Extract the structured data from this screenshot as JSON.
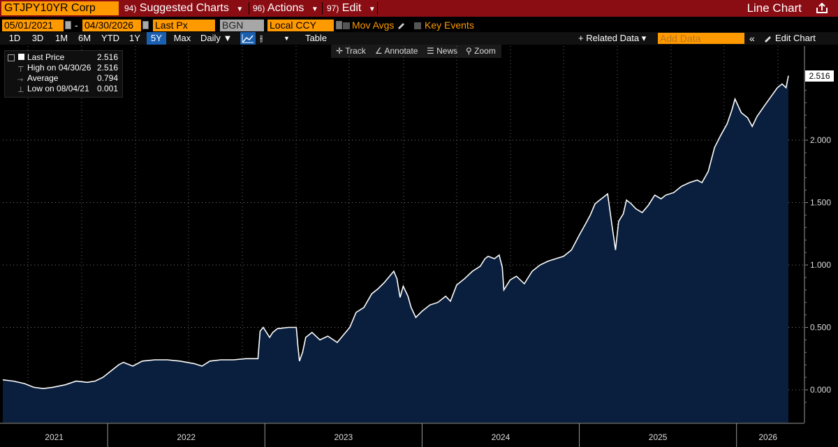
{
  "toolbar": {
    "ticker": "GTJPY10YR Corp",
    "menu": [
      {
        "num": "94)",
        "label": "Suggested Charts"
      },
      {
        "num": "96)",
        "label": "Actions"
      },
      {
        "num": "97)",
        "label": "Edit"
      }
    ],
    "chart_type": "Line Chart"
  },
  "params": {
    "start_date": "05/01/2021",
    "dash": "-",
    "end_date": "04/30/2026",
    "field": "Last Px",
    "source": "BGN",
    "currency": "Local CCY",
    "mov_avgs": "Mov Avgs",
    "key_events": "Key Events"
  },
  "periods": [
    "1D",
    "3D",
    "1M",
    "6M",
    "YTD",
    "1Y",
    "5Y",
    "Max"
  ],
  "active_period": "5Y",
  "frequency": "Daily ▼",
  "table_label": "Table",
  "related_data": "+ Related Data ▾",
  "add_data_placeholder": "Add Data",
  "edit_chart": "Edit Chart",
  "tools": [
    "Track",
    "Annotate",
    "News",
    "Zoom"
  ],
  "legend": [
    {
      "label": "Last Price",
      "value": "2.516"
    },
    {
      "label": "High on 04/30/26",
      "value": "2.516"
    },
    {
      "label": "Average",
      "value": "0.794"
    },
    {
      "label": "Low on 08/04/21",
      "value": "0.001"
    }
  ],
  "colors": {
    "accent": "#ff9900",
    "header_red": "#8b0d14",
    "area_fill": "#0a1f3d",
    "line": "#ffffff",
    "active_tab": "#1b5fb0"
  },
  "chart_data": {
    "type": "area",
    "title": "GTJPY10YR Corp",
    "series_name": "Last Price",
    "last_value_label": "2.516",
    "ylim": [
      -0.25,
      2.75
    ],
    "yticks": [
      0.0,
      0.5,
      1.0,
      1.5,
      2.0
    ],
    "ytick_labels": [
      "0.000",
      "0.500",
      "1.000",
      "1.500",
      "2.000"
    ],
    "xlim": [
      2021.333,
      2026.45
    ],
    "x_year_labels": [
      "2021",
      "2022",
      "2023",
      "2024",
      "2025",
      "2026"
    ],
    "x_year_label_positions": [
      2021.66,
      2022.5,
      2023.5,
      2024.5,
      2025.5,
      2026.2
    ],
    "x_year_boundaries": [
      2022.0,
      2023.0,
      2024.0,
      2025.0,
      2026.0
    ],
    "series": [
      {
        "name": "Last Price",
        "points": [
          [
            2021.333,
            0.08
          ],
          [
            2021.4,
            0.07
          ],
          [
            2021.47,
            0.05
          ],
          [
            2021.53,
            0.02
          ],
          [
            2021.59,
            0.01
          ],
          [
            2021.65,
            0.02
          ],
          [
            2021.73,
            0.04
          ],
          [
            2021.8,
            0.07
          ],
          [
            2021.87,
            0.06
          ],
          [
            2021.92,
            0.07
          ],
          [
            2021.97,
            0.1
          ],
          [
            2022.02,
            0.15
          ],
          [
            2022.07,
            0.2
          ],
          [
            2022.1,
            0.22
          ],
          [
            2022.16,
            0.19
          ],
          [
            2022.22,
            0.23
          ],
          [
            2022.3,
            0.24
          ],
          [
            2022.38,
            0.24
          ],
          [
            2022.46,
            0.23
          ],
          [
            2022.55,
            0.21
          ],
          [
            2022.6,
            0.19
          ],
          [
            2022.65,
            0.23
          ],
          [
            2022.72,
            0.24
          ],
          [
            2022.8,
            0.24
          ],
          [
            2022.88,
            0.25
          ],
          [
            2022.956,
            0.25
          ],
          [
            2022.97,
            0.47
          ],
          [
            2022.99,
            0.5
          ],
          [
            2023.03,
            0.42
          ],
          [
            2023.05,
            0.46
          ],
          [
            2023.08,
            0.49
          ],
          [
            2023.15,
            0.5
          ],
          [
            2023.2,
            0.5
          ],
          [
            2023.21,
            0.35
          ],
          [
            2023.22,
            0.23
          ],
          [
            2023.24,
            0.3
          ],
          [
            2023.26,
            0.42
          ],
          [
            2023.3,
            0.46
          ],
          [
            2023.35,
            0.4
          ],
          [
            2023.4,
            0.43
          ],
          [
            2023.46,
            0.38
          ],
          [
            2023.5,
            0.44
          ],
          [
            2023.54,
            0.5
          ],
          [
            2023.58,
            0.62
          ],
          [
            2023.63,
            0.66
          ],
          [
            2023.68,
            0.77
          ],
          [
            2023.72,
            0.81
          ],
          [
            2023.76,
            0.86
          ],
          [
            2023.8,
            0.92
          ],
          [
            2023.82,
            0.95
          ],
          [
            2023.84,
            0.89
          ],
          [
            2023.86,
            0.74
          ],
          [
            2023.88,
            0.83
          ],
          [
            2023.91,
            0.75
          ],
          [
            2023.93,
            0.66
          ],
          [
            2023.96,
            0.58
          ],
          [
            2024.0,
            0.63
          ],
          [
            2024.05,
            0.68
          ],
          [
            2024.1,
            0.7
          ],
          [
            2024.15,
            0.75
          ],
          [
            2024.18,
            0.71
          ],
          [
            2024.22,
            0.84
          ],
          [
            2024.27,
            0.89
          ],
          [
            2024.32,
            0.95
          ],
          [
            2024.37,
            0.99
          ],
          [
            2024.4,
            1.05
          ],
          [
            2024.42,
            1.07
          ],
          [
            2024.46,
            1.05
          ],
          [
            2024.49,
            1.08
          ],
          [
            2024.51,
            0.98
          ],
          [
            2024.52,
            0.8
          ],
          [
            2024.56,
            0.88
          ],
          [
            2024.6,
            0.91
          ],
          [
            2024.65,
            0.85
          ],
          [
            2024.7,
            0.95
          ],
          [
            2024.75,
            1.0
          ],
          [
            2024.8,
            1.03
          ],
          [
            2024.85,
            1.05
          ],
          [
            2024.9,
            1.07
          ],
          [
            2024.95,
            1.12
          ],
          [
            2025.0,
            1.24
          ],
          [
            2025.04,
            1.33
          ],
          [
            2025.07,
            1.4
          ],
          [
            2025.1,
            1.49
          ],
          [
            2025.13,
            1.52
          ],
          [
            2025.16,
            1.55
          ],
          [
            2025.18,
            1.57
          ],
          [
            2025.21,
            1.3
          ],
          [
            2025.23,
            1.12
          ],
          [
            2025.25,
            1.35
          ],
          [
            2025.28,
            1.41
          ],
          [
            2025.3,
            1.52
          ],
          [
            2025.33,
            1.49
          ],
          [
            2025.36,
            1.45
          ],
          [
            2025.4,
            1.42
          ],
          [
            2025.44,
            1.48
          ],
          [
            2025.48,
            1.56
          ],
          [
            2025.52,
            1.53
          ],
          [
            2025.55,
            1.56
          ],
          [
            2025.6,
            1.58
          ],
          [
            2025.65,
            1.63
          ],
          [
            2025.7,
            1.66
          ],
          [
            2025.75,
            1.68
          ],
          [
            2025.78,
            1.66
          ],
          [
            2025.82,
            1.75
          ],
          [
            2025.86,
            1.94
          ],
          [
            2025.9,
            2.04
          ],
          [
            2025.94,
            2.13
          ],
          [
            2025.97,
            2.24
          ],
          [
            2025.99,
            2.33
          ],
          [
            2026.03,
            2.22
          ],
          [
            2026.07,
            2.18
          ],
          [
            2026.1,
            2.11
          ],
          [
            2026.13,
            2.19
          ],
          [
            2026.18,
            2.28
          ],
          [
            2026.22,
            2.35
          ],
          [
            2026.26,
            2.42
          ],
          [
            2026.29,
            2.45
          ],
          [
            2026.315,
            2.42
          ],
          [
            2026.33,
            2.516
          ]
        ]
      }
    ]
  }
}
